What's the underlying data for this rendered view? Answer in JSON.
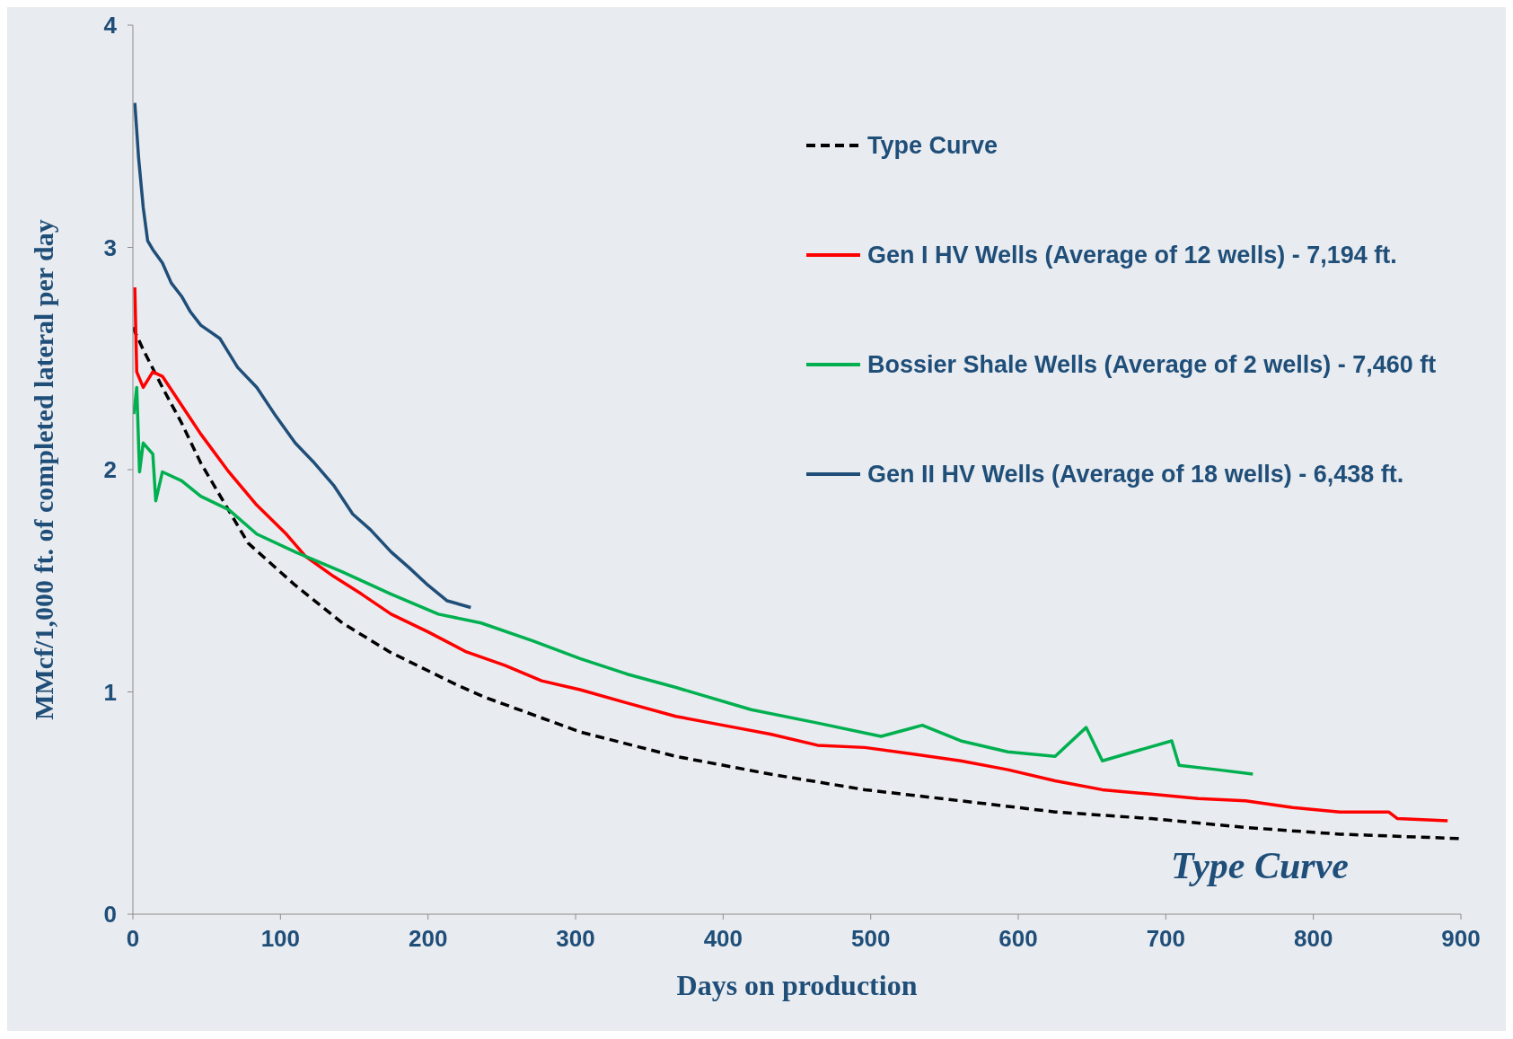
{
  "chart_data": {
    "type": "line",
    "xlabel": "Days on production",
    "ylabel": "MMcf/1,000 ft. of completed lateral per day",
    "xlim": [
      0,
      900
    ],
    "xticks": [
      0,
      100,
      200,
      300,
      400,
      500,
      600,
      700,
      800,
      900
    ],
    "ylim": [
      0,
      4
    ],
    "yticks": [
      0,
      1,
      2,
      3,
      4
    ],
    "grid": false,
    "legend": "top right",
    "marker": "none",
    "annotations": [
      "Type Curve"
    ],
    "series": [
      {
        "name": "Type Curve",
        "color": "#000000",
        "line_style": "dashed",
        "x": [
          0,
          7,
          20,
          33,
          46,
          78,
          110,
          142,
          174,
          220,
          239,
          303,
          368,
          432,
          496,
          561,
          625,
          690,
          754,
          818,
          900
        ],
        "values": [
          2.64,
          2.54,
          2.37,
          2.21,
          2.03,
          1.67,
          1.48,
          1.31,
          1.18,
          1.03,
          0.975,
          0.82,
          0.71,
          0.63,
          0.56,
          0.51,
          0.46,
          0.43,
          0.39,
          0.36,
          0.34
        ]
      },
      {
        "name": "Gen I HV Wells (Average of 12 wells) - 7,194 ft.",
        "color": "#ff0000",
        "line_style": "solid",
        "x": [
          1.3,
          2.6,
          7,
          13.5,
          20,
          33,
          46,
          65,
          84,
          104,
          117,
          136,
          155,
          175,
          200,
          226,
          252,
          277,
          303,
          335,
          368,
          400,
          432,
          464,
          496,
          529,
          561,
          593,
          625,
          657,
          690,
          722,
          754,
          786,
          818,
          851,
          857,
          891
        ],
        "values": [
          2.82,
          2.44,
          2.37,
          2.44,
          2.42,
          2.29,
          2.16,
          1.99,
          1.84,
          1.71,
          1.61,
          1.52,
          1.44,
          1.35,
          1.27,
          1.18,
          1.12,
          1.05,
          1.01,
          0.95,
          0.89,
          0.85,
          0.81,
          0.76,
          0.75,
          0.72,
          0.69,
          0.65,
          0.6,
          0.56,
          0.54,
          0.52,
          0.51,
          0.48,
          0.46,
          0.46,
          0.43,
          0.42
        ]
      },
      {
        "name": "Bossier Shale Wells (Average of 2 wells) - 7,460 ft",
        "color": "#00b050",
        "line_style": "solid",
        "x": [
          0.6,
          2.6,
          4.5,
          7,
          13.5,
          15.5,
          20,
          33,
          46,
          65,
          84,
          110,
          142,
          175,
          207,
          236,
          271,
          303,
          335,
          368,
          419,
          464,
          507,
          535,
          561,
          593,
          625,
          646,
          657,
          704,
          709,
          735,
          759
        ],
        "values": [
          2.25,
          2.37,
          1.99,
          2.12,
          2.07,
          1.86,
          1.99,
          1.95,
          1.88,
          1.82,
          1.71,
          1.63,
          1.54,
          1.44,
          1.35,
          1.31,
          1.23,
          1.15,
          1.08,
          1.02,
          0.92,
          0.86,
          0.8,
          0.85,
          0.78,
          0.73,
          0.71,
          0.84,
          0.69,
          0.78,
          0.67,
          0.65,
          0.63
        ]
      },
      {
        "name": "Gen II HV Wells (Average of 18 wells) - 6,438 ft.",
        "color": "#1f4e79",
        "line_style": "solid",
        "x": [
          1.3,
          3.9,
          7,
          10,
          13.5,
          20,
          26,
          33,
          39,
          46,
          59,
          71,
          84,
          97,
          110,
          123,
          136,
          149,
          161,
          175,
          187,
          200,
          213,
          229
        ],
        "values": [
          3.65,
          3.4,
          3.18,
          3.03,
          2.99,
          2.93,
          2.84,
          2.78,
          2.71,
          2.65,
          2.59,
          2.46,
          2.37,
          2.24,
          2.12,
          2.03,
          1.93,
          1.8,
          1.73,
          1.63,
          1.56,
          1.48,
          1.41,
          1.38
        ]
      }
    ]
  }
}
